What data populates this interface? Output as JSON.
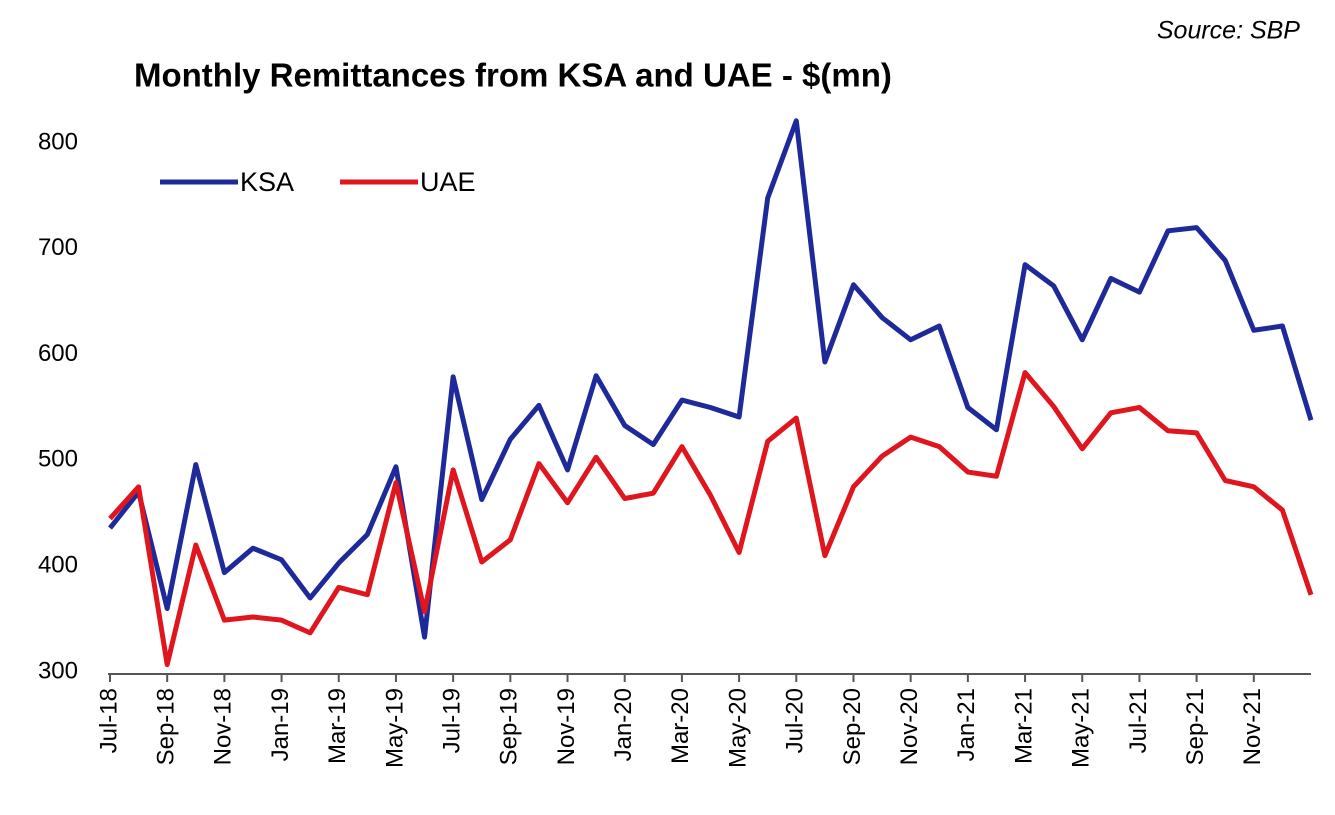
{
  "chart_data": {
    "type": "line",
    "title": "Monthly Remittances from KSA and UAE  - $(mn)",
    "annotation": "Source: SBP",
    "categories": [
      "Jul-18",
      null,
      "Sep-18",
      null,
      "Nov-18",
      null,
      "Jan-19",
      null,
      "Mar-19",
      null,
      "May-19",
      null,
      "Jul-19",
      null,
      "Sep-19",
      null,
      "Nov-19",
      null,
      "Jan-20",
      null,
      "Mar-20",
      null,
      "May-20",
      null,
      "Jul-20",
      null,
      "Sep-20",
      null,
      "Nov-20",
      null,
      "Jan-21",
      null,
      "Mar-21",
      null,
      "May-21",
      null,
      "Jul-21",
      null,
      "Sep-21",
      null,
      "Nov-21",
      null,
      null
    ],
    "series": [
      {
        "name": "KSA",
        "color": "#1f2a9a",
        "values": [
          436,
          470,
          360,
          496,
          394,
          417,
          406,
          370,
          403,
          430,
          494,
          333,
          579,
          463,
          520,
          552,
          491,
          580,
          533,
          515,
          557,
          550,
          541,
          748,
          821,
          593,
          666,
          635,
          614,
          627,
          550,
          529,
          685,
          665,
          614,
          672,
          659,
          717,
          720,
          689,
          623,
          627,
          538
        ]
      },
      {
        "name": "UAE",
        "color": "#e0161e",
        "values": [
          445,
          475,
          307,
          420,
          349,
          352,
          349,
          337,
          380,
          373,
          479,
          357,
          491,
          404,
          425,
          497,
          460,
          503,
          464,
          469,
          513,
          467,
          413,
          518,
          540,
          410,
          475,
          504,
          522,
          513,
          489,
          485,
          583,
          551,
          511,
          545,
          550,
          528,
          526,
          481,
          475,
          453,
          373
        ]
      }
    ],
    "ylim": [
      300,
      800
    ],
    "yticks": [
      300,
      400,
      500,
      600,
      700,
      800
    ],
    "legend": "upper left"
  }
}
